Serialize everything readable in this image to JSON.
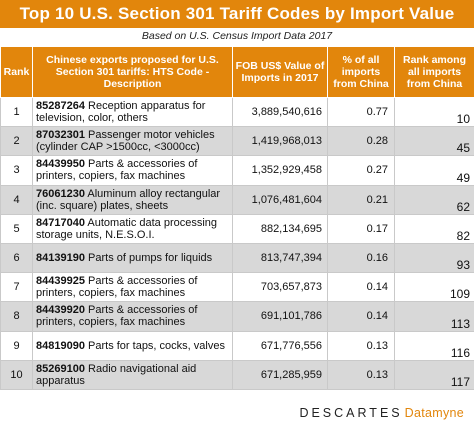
{
  "header": {
    "title": "Top 10 U.S. Section 301 Tariff Codes by Import Value",
    "subtitle": "Based on U.S. Census Import Data 2017"
  },
  "table": {
    "columns": [
      "Rank",
      "Chinese exports proposed for U.S. Section 301 tariffs: HTS Code - Description",
      "FOB US$ Value of Imports in 2017",
      "% of all imports from China",
      "Rank among all imports from China"
    ],
    "rows": [
      {
        "rank": "1",
        "code": "85287264",
        "desc": "Reception apparatus for television, color, others",
        "value": "3,889,540,616",
        "pct": "0.77",
        "overall_rank": "10"
      },
      {
        "rank": "2",
        "code": "87032301",
        "desc": "Passenger motor vehicles (cylinder CAP >1500cc, <3000cc)",
        "value": "1,419,968,013",
        "pct": "0.28",
        "overall_rank": "45"
      },
      {
        "rank": "3",
        "code": "84439950",
        "desc": "Parts & accessories of printers, copiers, fax machines",
        "value": "1,352,929,458",
        "pct": "0.27",
        "overall_rank": "49"
      },
      {
        "rank": "4",
        "code": "76061230",
        "desc": "Aluminum alloy rectangular (inc. square) plates, sheets",
        "value": "1,076,481,604",
        "pct": "0.21",
        "overall_rank": "62"
      },
      {
        "rank": "5",
        "code": "84717040",
        "desc": "Automatic data processing storage units, N.E.S.O.I.",
        "value": "882,134,695",
        "pct": "0.17",
        "overall_rank": "82"
      },
      {
        "rank": "6",
        "code": "84139190",
        "desc": "Parts of pumps for liquids",
        "value": "813,747,394",
        "pct": "0.16",
        "overall_rank": "93"
      },
      {
        "rank": "7",
        "code": "84439925",
        "desc": "Parts & accessories of printers, copiers, fax machines",
        "value": "703,657,873",
        "pct": "0.14",
        "overall_rank": "109"
      },
      {
        "rank": "8",
        "code": "84439920",
        "desc": "Parts & accessories of printers, copiers, fax machines",
        "value": "691,101,786",
        "pct": "0.14",
        "overall_rank": "113"
      },
      {
        "rank": "9",
        "code": "84819090",
        "desc": "Parts for taps, cocks, valves",
        "value": "671,776,556",
        "pct": "0.13",
        "overall_rank": "116"
      },
      {
        "rank": "10",
        "code": "85269100",
        "desc": "Radio navigational aid apparatus",
        "value": "671,285,959",
        "pct": "0.13",
        "overall_rank": "117"
      }
    ]
  },
  "footer": {
    "logo_word": "DESCARTES",
    "logo_brand": "Datamyne"
  },
  "colors": {
    "accent": "#e2860c",
    "row_shade": "#d8d8d8"
  }
}
